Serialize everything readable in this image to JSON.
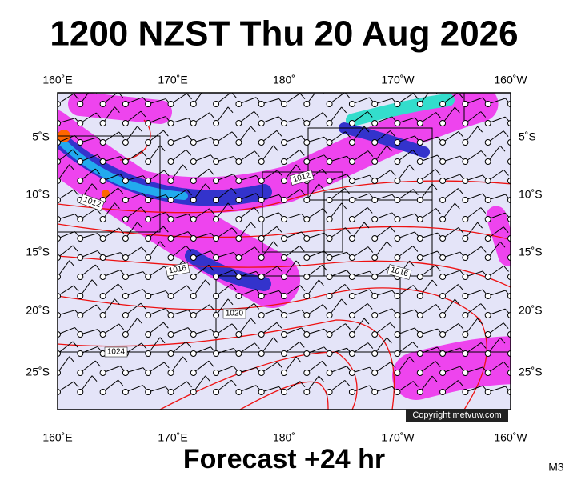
{
  "header": {
    "title": "1200 NZST Thu 20 Aug 2026"
  },
  "axes": {
    "top_labels": [
      "160˚E",
      "170˚E",
      "180˚",
      "170˚W",
      "160˚W"
    ],
    "bottom_labels": [
      "160˚E",
      "170˚E",
      "180˚",
      "170˚W",
      "160˚W"
    ],
    "left_labels": [
      "5˚S",
      "10˚S",
      "15˚S",
      "20˚S",
      "25˚S"
    ],
    "right_labels": [
      "5˚S",
      "10˚S",
      "15˚S",
      "20˚S",
      "25˚S"
    ]
  },
  "isobar_labels": [
    "1012",
    "1012",
    "1016",
    "1016",
    "1020",
    "1024"
  ],
  "copyright": "Copyright metvuw.com",
  "footer": "Forecast +24 hr",
  "model": "M3"
}
